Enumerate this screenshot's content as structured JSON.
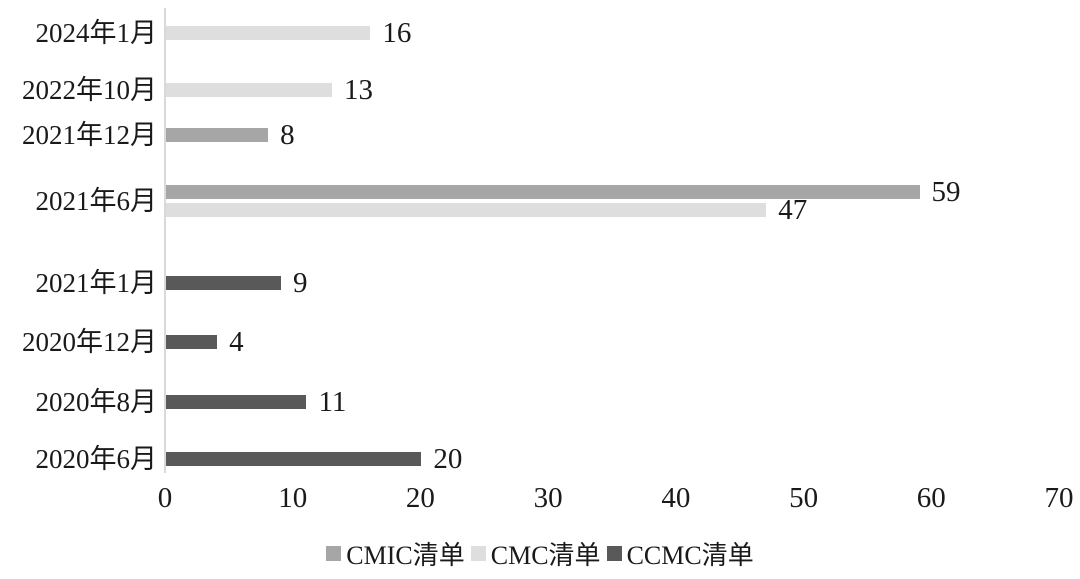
{
  "chart_data": {
    "type": "bar",
    "orientation": "horizontal",
    "title": "",
    "categories": [
      "2024年1月",
      "2022年10月",
      "2021年12月",
      "2021年6月",
      "2021年1月",
      "2020年12月",
      "2020年8月",
      "2020年6月"
    ],
    "series": [
      {
        "name": "CMIC清单",
        "color": "#a6a6a6",
        "values": [
          0,
          0,
          8,
          59,
          0,
          0,
          0,
          0
        ]
      },
      {
        "name": "CMC清单",
        "color": "#dedede",
        "values": [
          16,
          13,
          0,
          47,
          0,
          0,
          0,
          0
        ]
      },
      {
        "name": "CCMC清单",
        "color": "#595959",
        "values": [
          0,
          0,
          0,
          0,
          9,
          4,
          11,
          20
        ]
      }
    ],
    "xlim": [
      0,
      70
    ],
    "xticks": [
      0,
      10,
      20,
      30,
      40,
      50,
      60,
      70
    ],
    "data_labels": true,
    "grid": false,
    "legend_position": "bottom"
  },
  "colors": {
    "axis_line": "#d9d9d9",
    "text": "#1a1a1a",
    "background": "#ffffff"
  }
}
